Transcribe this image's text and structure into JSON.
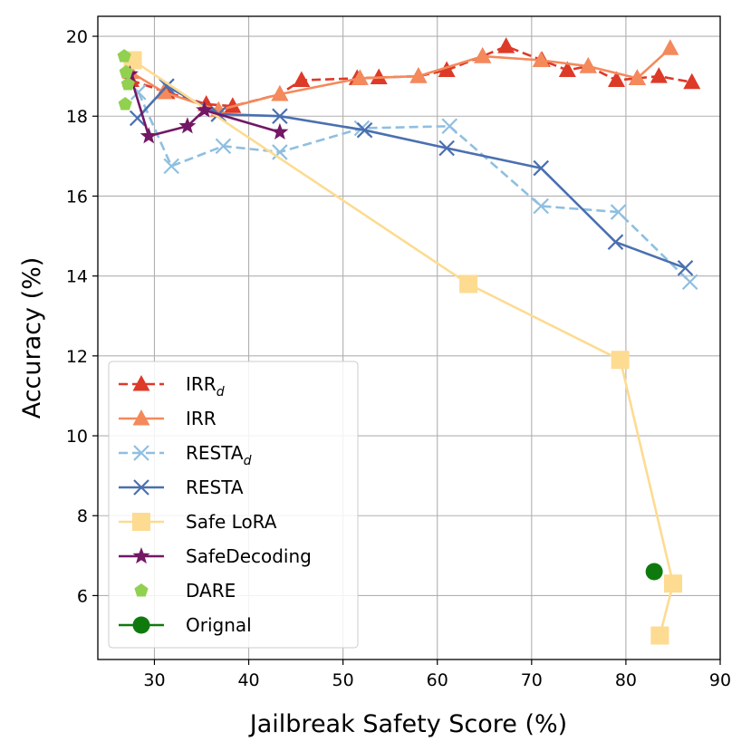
{
  "chart_data": {
    "type": "line",
    "title": "",
    "xlabel": "Jailbreak Safety Score (%)",
    "ylabel": "Accuracy (%)",
    "xlim": [
      24,
      90
    ],
    "ylim": [
      4.4,
      20.5
    ],
    "xticks": [
      30,
      40,
      50,
      60,
      70,
      80,
      90
    ],
    "yticks": [
      6,
      8,
      10,
      12,
      14,
      16,
      18,
      20
    ],
    "grid": true,
    "legend_position": "bottom-left",
    "series": [
      {
        "name": "IRR",
        "sub": "d",
        "color": "#dd3a28",
        "linestyle": "dashed",
        "marker": "triangle",
        "points": [
          [
            27.5,
            18.9
          ],
          [
            31.3,
            18.6
          ],
          [
            35.5,
            18.3
          ],
          [
            38.3,
            18.25
          ],
          [
            43.3,
            18.55
          ],
          [
            45.6,
            18.9
          ],
          [
            51.5,
            18.95
          ],
          [
            53.8,
            18.97
          ],
          [
            58.0,
            19.0
          ],
          [
            61.0,
            19.15
          ],
          [
            64.8,
            19.5
          ],
          [
            67.3,
            19.75
          ],
          [
            71.1,
            19.4
          ],
          [
            73.8,
            19.15
          ],
          [
            76.0,
            19.25
          ],
          [
            79.0,
            18.9
          ],
          [
            81.2,
            18.95
          ],
          [
            83.5,
            19.0
          ],
          [
            87.0,
            18.85
          ]
        ]
      },
      {
        "name": "IRR",
        "sub": "",
        "color": "#f4895b",
        "linestyle": "solid",
        "marker": "triangle",
        "points": [
          [
            27.5,
            19.1
          ],
          [
            31.0,
            18.6
          ],
          [
            36.8,
            18.15
          ],
          [
            43.3,
            18.55
          ],
          [
            51.8,
            18.95
          ],
          [
            58.0,
            19.0
          ],
          [
            64.8,
            19.5
          ],
          [
            71.0,
            19.4
          ],
          [
            76.0,
            19.25
          ],
          [
            81.2,
            18.95
          ],
          [
            84.7,
            19.7
          ]
        ]
      },
      {
        "name": "RESTA",
        "sub": "d",
        "color": "#8fbfe0",
        "linestyle": "dashed",
        "marker": "x",
        "points": [
          [
            28.3,
            18.6
          ],
          [
            31.8,
            16.75
          ],
          [
            37.3,
            17.25
          ],
          [
            43.3,
            17.1
          ],
          [
            52.0,
            17.7
          ],
          [
            61.3,
            17.75
          ],
          [
            71.0,
            15.75
          ],
          [
            79.2,
            15.6
          ],
          [
            86.8,
            13.85
          ]
        ]
      },
      {
        "name": "RESTA",
        "sub": "",
        "color": "#4a70b0",
        "linestyle": "solid",
        "marker": "x",
        "points": [
          [
            28.2,
            17.95
          ],
          [
            31.3,
            18.75
          ],
          [
            36.8,
            18.05
          ],
          [
            43.3,
            18.0
          ],
          [
            52.3,
            17.65
          ],
          [
            61.0,
            17.2
          ],
          [
            71.0,
            16.7
          ],
          [
            78.9,
            14.85
          ],
          [
            86.3,
            14.2
          ]
        ]
      },
      {
        "name": "Safe LoRA",
        "sub": "",
        "color": "#fddb91",
        "linestyle": "solid",
        "marker": "square",
        "points": [
          [
            27.7,
            19.4
          ],
          [
            63.3,
            13.8
          ],
          [
            79.4,
            11.9
          ],
          [
            85.0,
            6.3
          ],
          [
            83.6,
            5.0
          ]
        ]
      },
      {
        "name": "SafeDecoding",
        "sub": "",
        "color": "#731766",
        "linestyle": "solid",
        "marker": "star",
        "points": [
          [
            27.4,
            19.05
          ],
          [
            29.4,
            17.5
          ],
          [
            33.5,
            17.75
          ],
          [
            35.3,
            18.15
          ],
          [
            43.3,
            17.6
          ]
        ]
      },
      {
        "name": "DARE",
        "sub": "",
        "color": "#92d050",
        "linestyle": "none",
        "marker": "pentagon",
        "points": [
          [
            26.8,
            19.5
          ],
          [
            27.0,
            19.1
          ],
          [
            27.2,
            18.8
          ],
          [
            26.9,
            18.3
          ]
        ]
      },
      {
        "name": "Orignal",
        "sub": "",
        "color": "#0e7a0e",
        "linestyle": "solid",
        "marker": "circle",
        "points": [
          [
            83.0,
            6.6
          ]
        ]
      }
    ]
  }
}
